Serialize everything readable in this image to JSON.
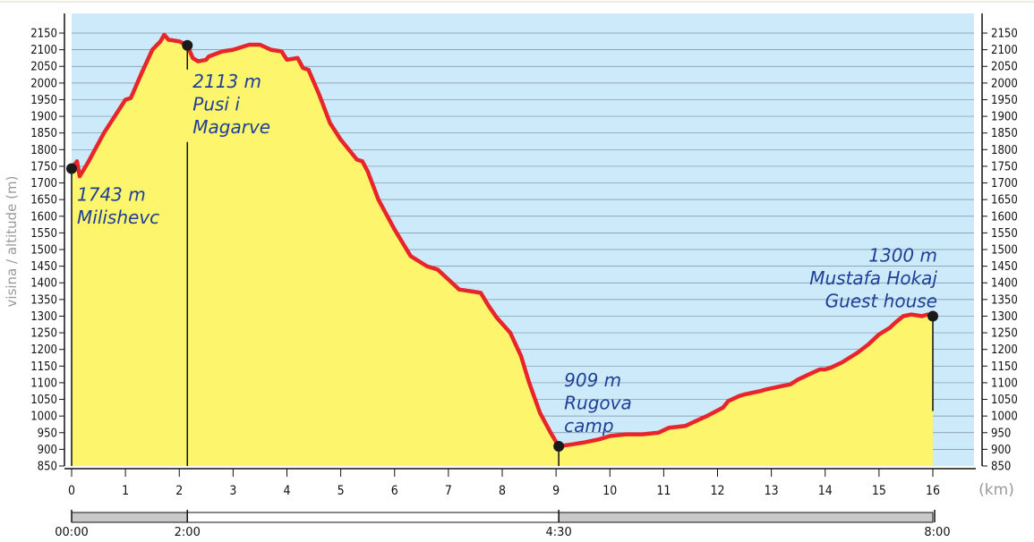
{
  "chart_data": {
    "type": "area",
    "ylabel": "visina / altitude (m)",
    "xunit": "(km)",
    "xlim": [
      0,
      16
    ],
    "ylim": [
      850,
      2150
    ],
    "xticks": [
      0,
      1,
      2,
      3,
      4,
      5,
      6,
      7,
      8,
      9,
      10,
      11,
      12,
      13,
      14,
      15,
      16
    ],
    "yticks": [
      850,
      900,
      950,
      1000,
      1050,
      1100,
      1150,
      1200,
      1250,
      1300,
      1350,
      1400,
      1450,
      1500,
      1550,
      1600,
      1650,
      1700,
      1750,
      1800,
      1850,
      1900,
      1950,
      2000,
      2050,
      2100,
      2150
    ],
    "grid": true,
    "colors": {
      "fill": "#fdf56b",
      "line": "#e8252a",
      "background": "#cdeafb",
      "annotation": "#1f3f96",
      "grid": "#7a8ea0"
    },
    "profile": {
      "x": [
        0,
        0.03,
        0.1,
        0.15,
        0.3,
        0.6,
        0.9,
        1.0,
        1.1,
        1.3,
        1.5,
        1.65,
        1.72,
        1.8,
        2.0,
        2.15,
        2.25,
        2.35,
        2.5,
        2.55,
        2.8,
        3.0,
        3.3,
        3.5,
        3.7,
        3.9,
        4.0,
        4.2,
        4.3,
        4.4,
        4.6,
        4.8,
        5.0,
        5.3,
        5.4,
        5.5,
        5.7,
        6.0,
        6.3,
        6.6,
        6.8,
        7.0,
        7.2,
        7.4,
        7.6,
        7.75,
        7.9,
        8.15,
        8.35,
        8.5,
        8.7,
        8.9,
        9.05,
        9.3,
        9.5,
        9.8,
        10.0,
        10.3,
        10.6,
        10.9,
        11.1,
        11.4,
        11.6,
        11.8,
        12.1,
        12.2,
        12.4,
        12.5,
        12.8,
        12.9,
        13.2,
        13.35,
        13.5,
        13.7,
        13.9,
        14.0,
        14.1,
        14.3,
        14.6,
        14.8,
        15.0,
        15.2,
        15.3,
        15.45,
        15.6,
        15.8,
        15.9,
        16.0
      ],
      "y": [
        1743,
        1750,
        1765,
        1720,
        1760,
        1850,
        1925,
        1950,
        1955,
        2030,
        2100,
        2125,
        2145,
        2130,
        2125,
        2113,
        2075,
        2065,
        2070,
        2080,
        2095,
        2100,
        2115,
        2115,
        2100,
        2095,
        2070,
        2075,
        2045,
        2040,
        1965,
        1880,
        1830,
        1770,
        1765,
        1735,
        1650,
        1560,
        1480,
        1450,
        1440,
        1410,
        1380,
        1375,
        1370,
        1330,
        1295,
        1250,
        1180,
        1100,
        1010,
        950,
        909,
        915,
        920,
        930,
        940,
        945,
        945,
        950,
        965,
        970,
        985,
        1000,
        1025,
        1045,
        1060,
        1065,
        1075,
        1080,
        1090,
        1095,
        1110,
        1125,
        1140,
        1140,
        1145,
        1160,
        1190,
        1215,
        1245,
        1265,
        1280,
        1300,
        1305,
        1300,
        1305,
        1300
      ]
    },
    "annotations": [
      {
        "x": 0,
        "y": 1743,
        "lines": [
          "1743 m",
          "Milishevc"
        ],
        "align": "start"
      },
      {
        "x": 2.15,
        "y": 2113,
        "lines": [
          "2113 m",
          "Pusi i",
          "Magarve"
        ],
        "align": "start"
      },
      {
        "x": 9.05,
        "y": 909,
        "lines": [
          "909 m",
          "Rugova",
          "camp"
        ],
        "align": "start"
      },
      {
        "x": 16,
        "y": 1300,
        "lines": [
          "1300 m",
          "Mustafa Hokaj",
          "Guest house"
        ],
        "align": "end"
      }
    ],
    "timeline": [
      {
        "from": 0,
        "to": 2.15,
        "label": "00:00"
      },
      {
        "from": 2.15,
        "to": 9.05,
        "label": "2:00"
      },
      {
        "from": 9.05,
        "to": 16,
        "label": "4:30"
      },
      {
        "from": 16,
        "to": 16,
        "label": "8:00"
      }
    ]
  }
}
